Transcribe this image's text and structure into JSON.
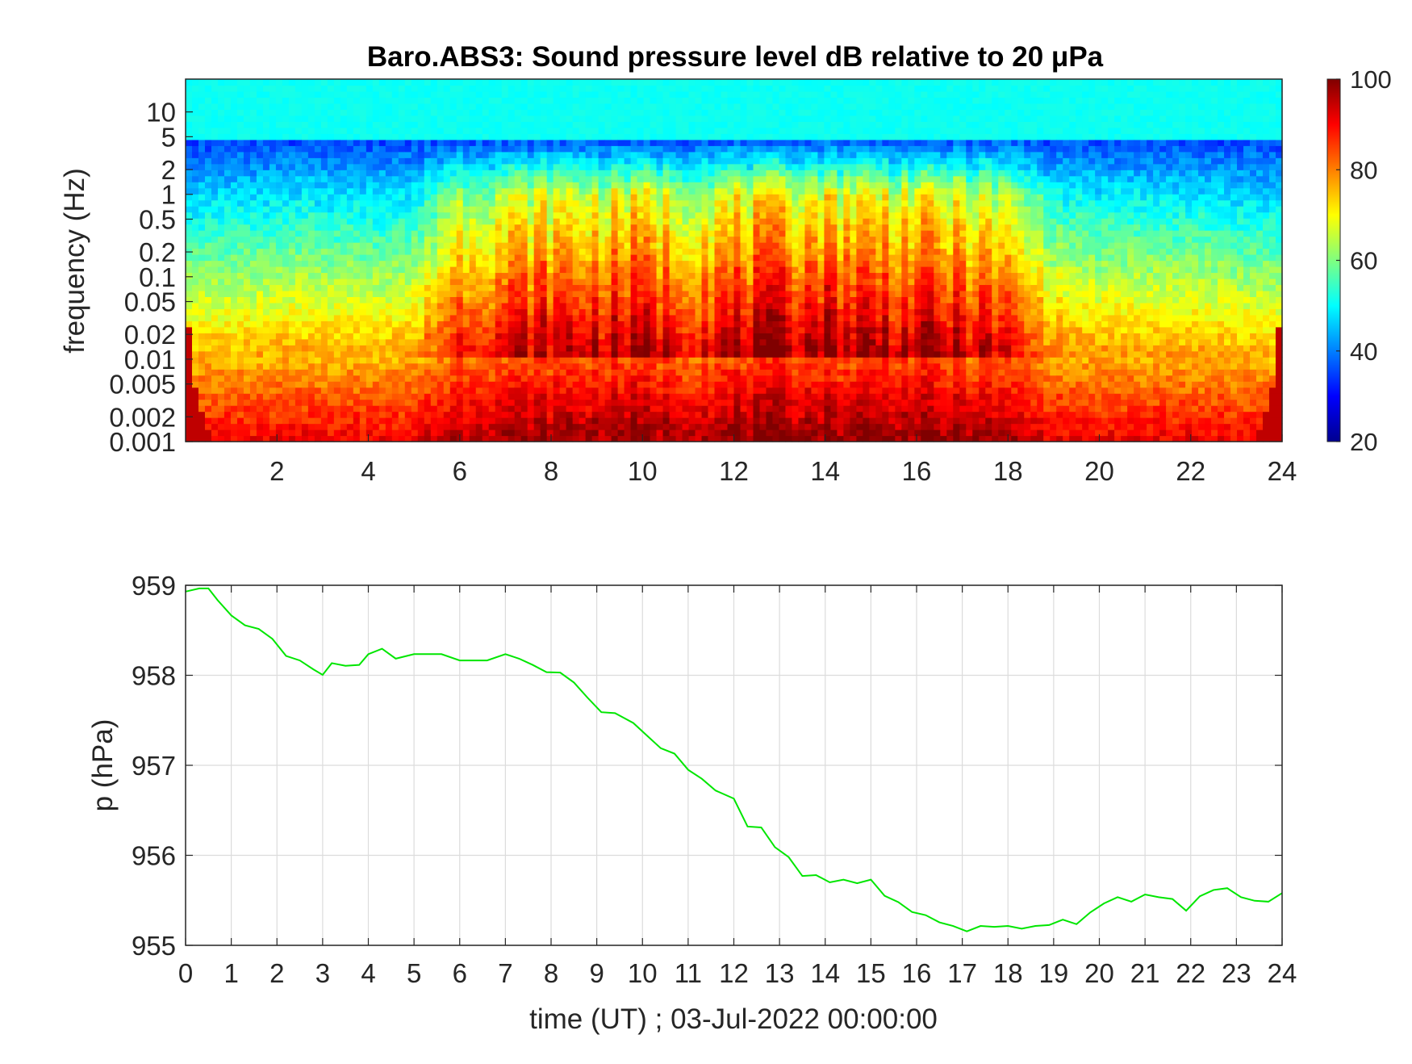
{
  "figure": {
    "background": "#ffffff"
  },
  "chart_data": [
    {
      "type": "heatmap",
      "title": "Baro.ABS3: Sound pressure level dB relative to 20 μPa",
      "xlabel": "",
      "ylabel": "frequency (Hz)",
      "xlim": [
        0,
        24
      ],
      "x_ticks": [
        "2",
        "4",
        "6",
        "8",
        "10",
        "12",
        "14",
        "16",
        "18",
        "20",
        "22",
        "24"
      ],
      "x_tick_values": [
        2,
        4,
        6,
        8,
        10,
        12,
        14,
        16,
        18,
        20,
        22,
        24
      ],
      "y_scale": "log",
      "ylim": [
        0.001,
        25
      ],
      "y_ticks": [
        "0.001",
        "0.002",
        "0.005",
        "0.01",
        "0.02",
        "0.05",
        "0.1",
        "0.2",
        "0.5",
        "1",
        "2",
        "5",
        "10"
      ],
      "y_tick_values": [
        0.001,
        0.002,
        0.005,
        0.01,
        0.02,
        0.05,
        0.1,
        0.2,
        0.5,
        1,
        2,
        5,
        10
      ],
      "colormap": "jet",
      "colorbar": {
        "min": 20,
        "max": 100,
        "ticks": [
          "20",
          "40",
          "60",
          "80",
          "100"
        ],
        "tick_values": [
          20,
          40,
          60,
          80,
          100
        ]
      },
      "activity_hours": [
        0,
        1,
        2,
        3,
        4,
        5,
        6,
        7,
        8,
        9,
        10,
        11,
        12,
        13,
        14,
        15,
        16,
        17,
        18,
        19,
        20,
        21,
        22,
        23,
        24
      ],
      "activity_level": [
        0.05,
        0.08,
        0.1,
        0.12,
        0.1,
        0.15,
        0.7,
        0.8,
        0.85,
        0.85,
        0.9,
        0.8,
        0.9,
        0.95,
        1.0,
        0.95,
        0.9,
        0.85,
        0.7,
        0.25,
        0.15,
        0.15,
        0.12,
        0.1,
        0.05
      ],
      "notes_grid": false
    },
    {
      "type": "line",
      "title": "",
      "xlabel": "time (UT) ; 03-Jul-2022 00:00:00",
      "ylabel": "p (hPa)",
      "xlim": [
        0,
        24
      ],
      "ylim": [
        955,
        959
      ],
      "x_ticks": [
        "0",
        "1",
        "2",
        "3",
        "4",
        "5",
        "6",
        "7",
        "8",
        "9",
        "10",
        "11",
        "12",
        "13",
        "14",
        "15",
        "16",
        "17",
        "18",
        "19",
        "20",
        "21",
        "22",
        "23",
        "24"
      ],
      "x_tick_values": [
        0,
        1,
        2,
        3,
        4,
        5,
        6,
        7,
        8,
        9,
        10,
        11,
        12,
        13,
        14,
        15,
        16,
        17,
        18,
        19,
        20,
        21,
        22,
        23,
        24
      ],
      "y_ticks": [
        "955",
        "956",
        "957",
        "958",
        "959"
      ],
      "y_tick_values": [
        955,
        956,
        957,
        958,
        959
      ],
      "grid": true,
      "line_color": "#00e600",
      "series": [
        {
          "x": [
            0,
            0.3,
            0.5,
            0.7,
            1.0,
            1.3,
            1.6,
            1.9,
            2.2,
            2.5,
            2.8,
            3.0,
            3.2,
            3.5,
            3.8,
            4.0,
            4.3,
            4.6,
            5.0,
            5.3,
            5.6,
            6.0,
            6.3,
            6.6,
            7.0,
            7.3,
            7.6,
            7.9,
            8.2,
            8.5,
            8.8,
            9.1,
            9.4,
            9.8,
            10.1,
            10.4,
            10.7,
            11.0,
            11.3,
            11.6,
            12.0,
            12.3,
            12.6,
            12.9,
            13.2,
            13.5,
            13.8,
            14.1,
            14.4,
            14.7,
            15.0,
            15.3,
            15.6,
            15.9,
            16.2,
            16.5,
            16.8,
            17.1,
            17.4,
            17.7,
            18.0,
            18.3,
            18.6,
            18.9,
            19.2,
            19.5,
            19.8,
            20.1,
            20.4,
            20.7,
            21.0,
            21.3,
            21.6,
            21.9,
            22.2,
            22.5,
            22.8,
            23.1,
            23.4,
            23.7,
            24.0
          ],
          "y": [
            958.93,
            958.98,
            958.95,
            958.85,
            958.65,
            958.57,
            958.5,
            958.42,
            958.2,
            958.18,
            958.05,
            958.02,
            958.12,
            958.12,
            958.1,
            958.25,
            958.28,
            958.2,
            958.22,
            958.25,
            958.22,
            958.18,
            958.15,
            958.18,
            958.22,
            958.2,
            958.1,
            958.05,
            958.0,
            957.95,
            957.72,
            957.62,
            957.55,
            957.5,
            957.3,
            957.22,
            957.1,
            956.98,
            956.82,
            956.75,
            956.6,
            956.35,
            956.28,
            956.12,
            955.95,
            955.8,
            955.75,
            955.73,
            955.7,
            955.72,
            955.7,
            955.58,
            955.45,
            955.4,
            955.32,
            955.27,
            955.2,
            955.17,
            955.2,
            955.22,
            955.2,
            955.2,
            955.2,
            955.24,
            955.27,
            955.25,
            955.35,
            955.48,
            955.52,
            955.5,
            955.55,
            955.55,
            955.5,
            955.4,
            955.53,
            955.63,
            955.62,
            955.55,
            955.48,
            955.5,
            955.58
          ]
        }
      ]
    }
  ]
}
